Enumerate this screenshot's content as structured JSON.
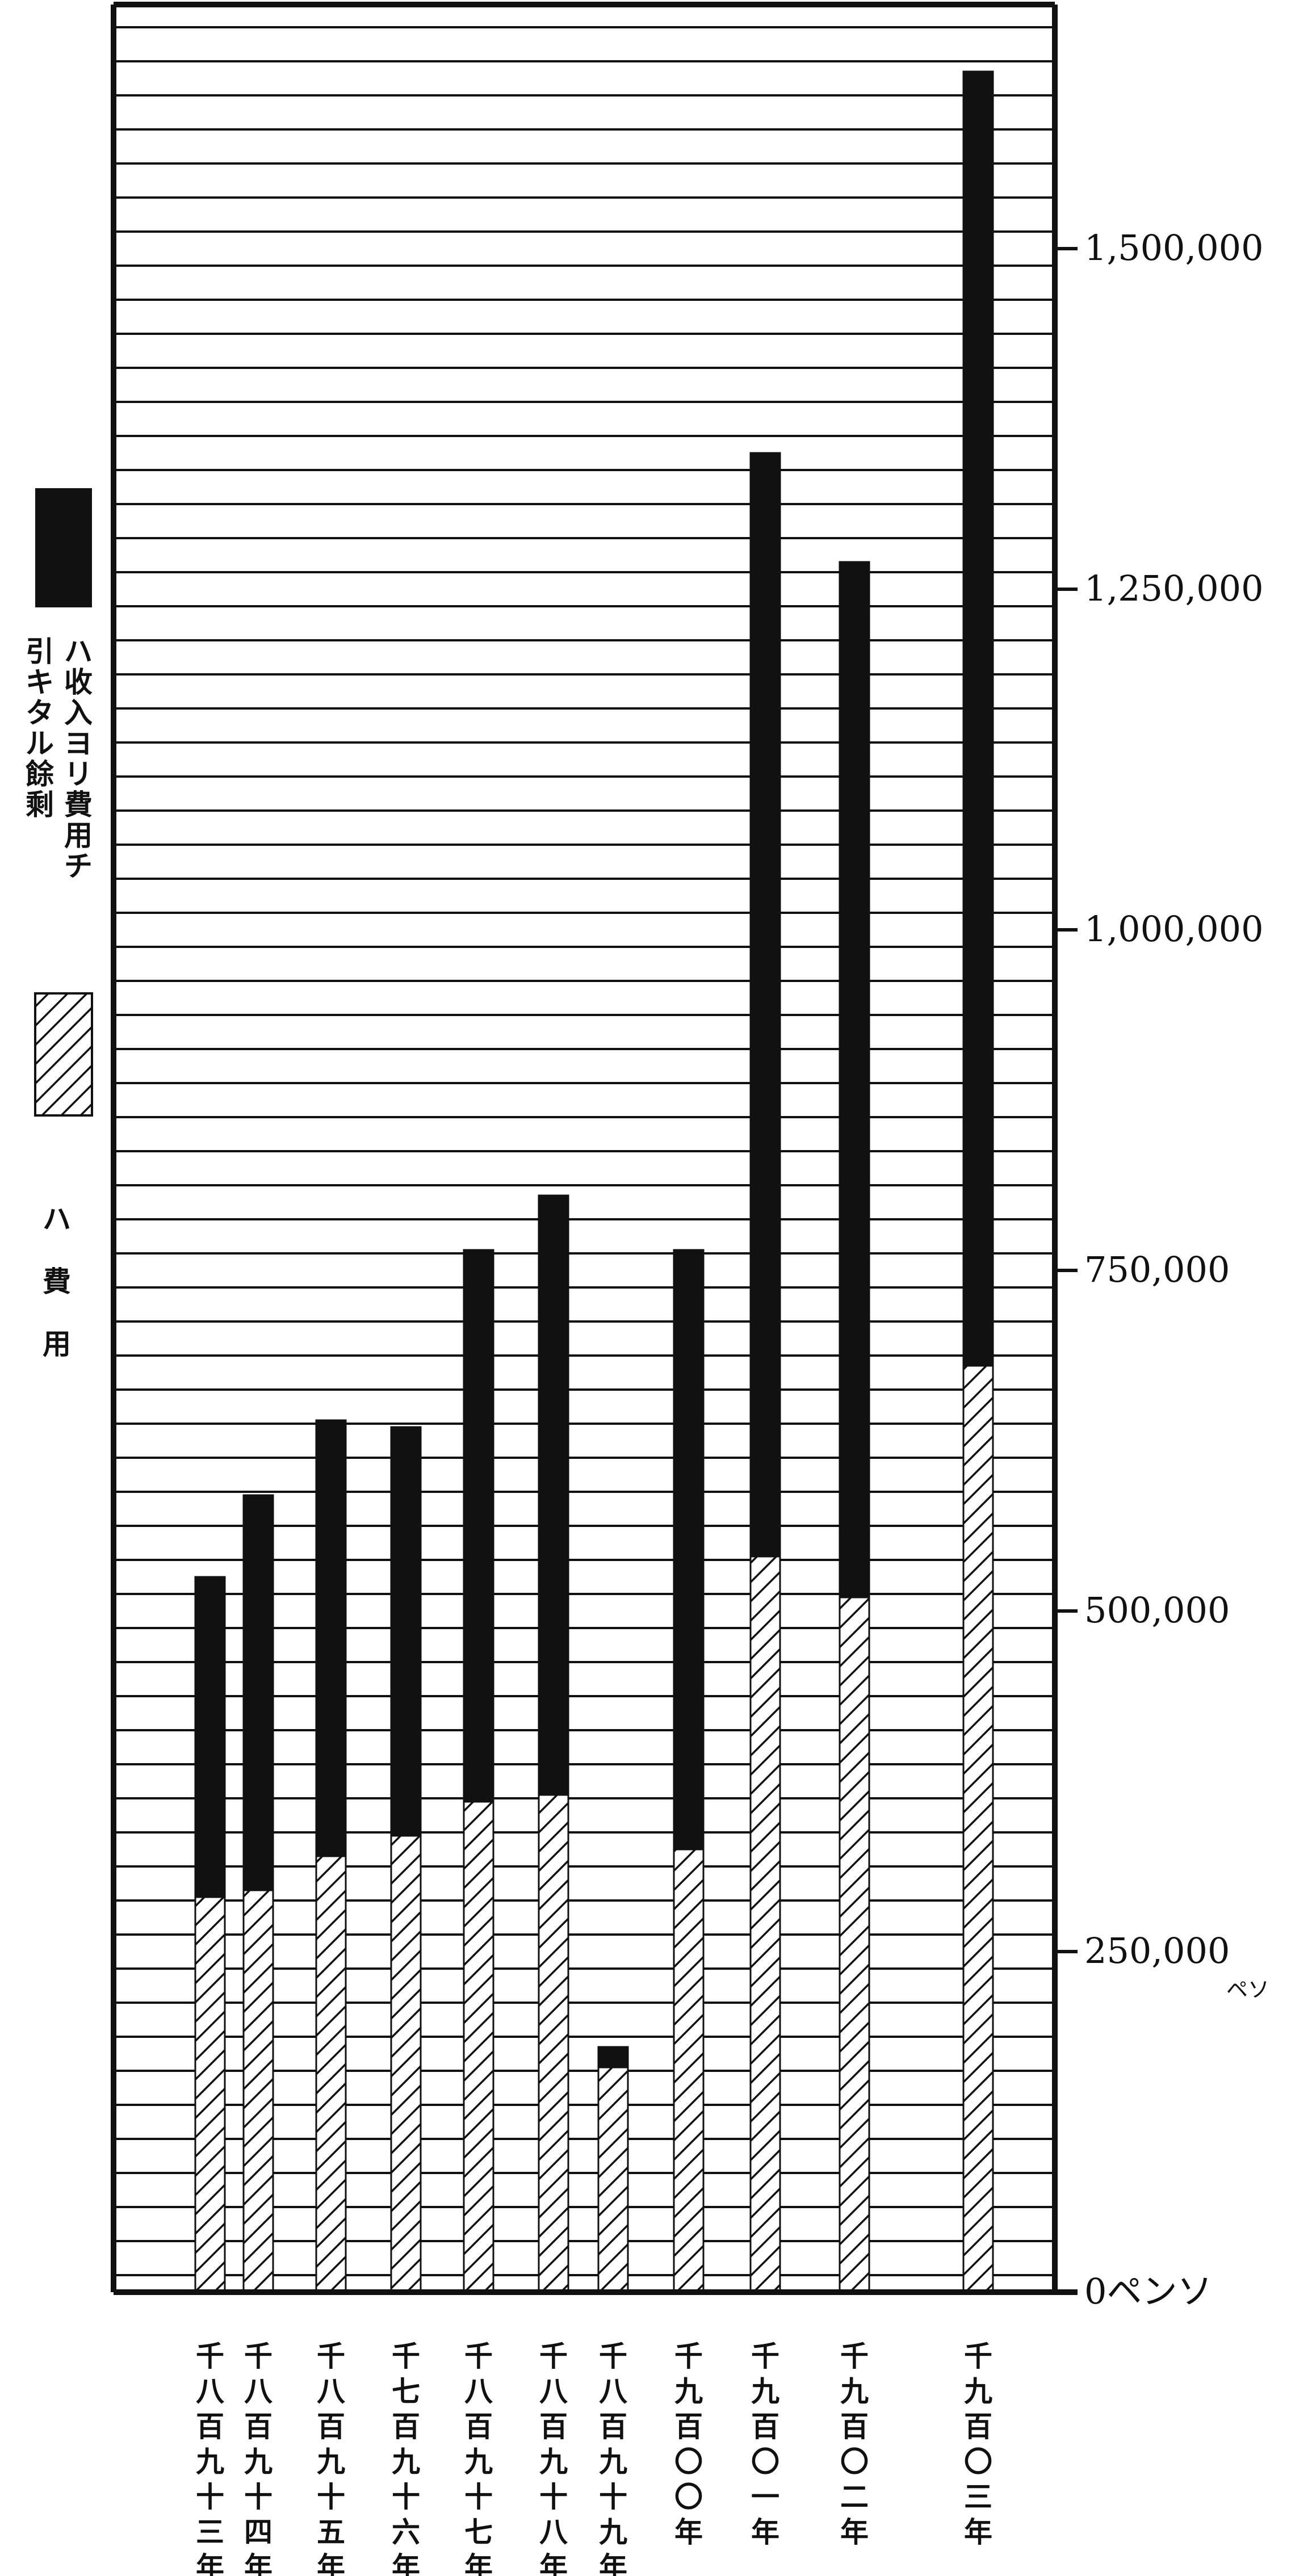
{
  "chart_data": {
    "type": "bar",
    "stacked": true,
    "grid": true,
    "legend_position": "left",
    "ylim": [
      0,
      1600000
    ],
    "categories": [
      "千八百九十三年",
      "千八百九十四年",
      "千八百九十五年",
      "千七百九十六年",
      "千八百九十七年",
      "千八百九十八年",
      "千八百九十九年",
      "千九百〇〇年",
      "千九百〇一年",
      "千九百〇二年",
      "千九百〇三年"
    ],
    "series": [
      {
        "name": "ハ費用",
        "pattern": "hatched",
        "values": [
          290000,
          295000,
          320000,
          335000,
          360000,
          365000,
          165000,
          325000,
          540000,
          510000,
          680000
        ]
      },
      {
        "name": "ハ收入ヨリ費用チ引キタル餘剩",
        "pattern": "black",
        "values": [
          235000,
          290000,
          320000,
          300000,
          405000,
          440000,
          15000,
          440000,
          810000,
          760000,
          950000
        ]
      }
    ],
    "y_tick_labels": [
      {
        "value": 0,
        "label": "0ペンソ"
      },
      {
        "value": 250000,
        "label": "250,000"
      },
      {
        "value": 500000,
        "label": "500,000"
      },
      {
        "value": 750000,
        "label": "750,000"
      },
      {
        "value": 1000000,
        "label": "1,000,000"
      },
      {
        "value": 1250000,
        "label": "1,250,000"
      },
      {
        "value": 1500000,
        "label": "1,500,000"
      }
    ],
    "y_unit_note": "ペソ"
  },
  "legend": [
    {
      "key": "surplus",
      "pattern": "black",
      "text": "ハ收入ヨリ費用チ引キタル餘剩"
    },
    {
      "key": "expense",
      "pattern": "hatched",
      "text": "ハ費用"
    }
  ],
  "colors": {
    "ink": "#111111",
    "paper": "#ffffff"
  }
}
